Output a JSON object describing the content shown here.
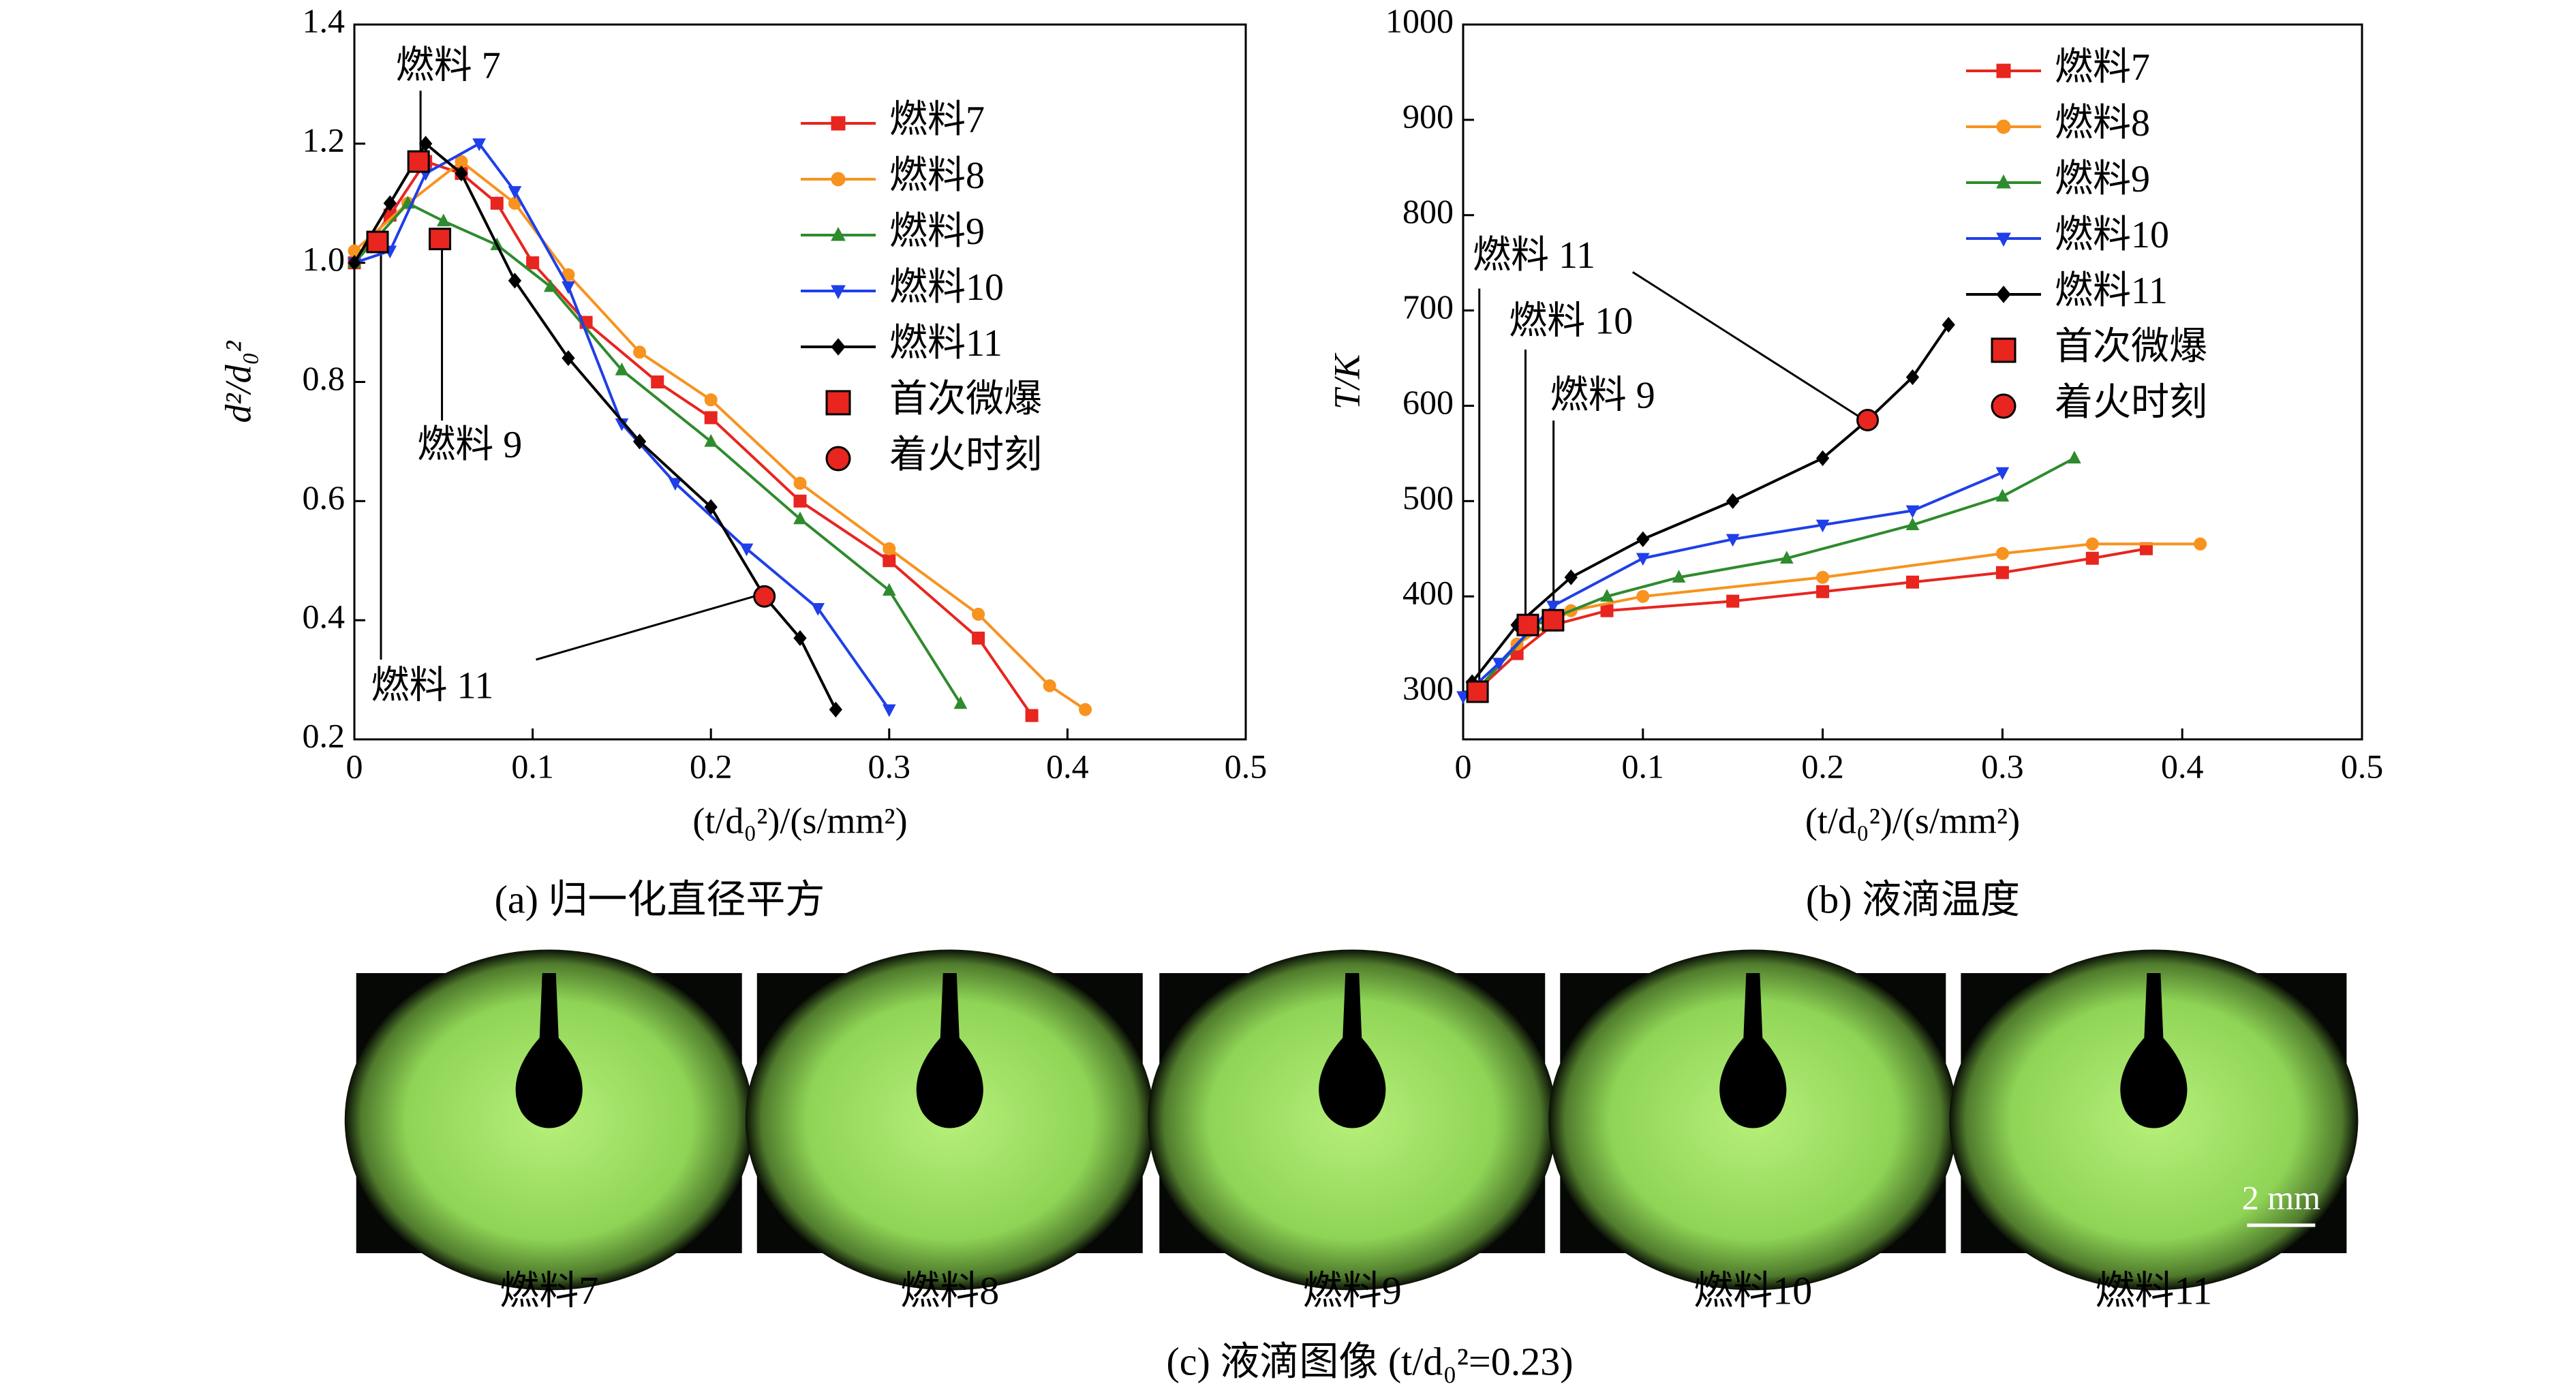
{
  "chart_data": [
    {
      "type": "line",
      "title": "(a) 归一化直径平方",
      "xlabel": "(t/d₀²)/(s/mm²)",
      "ylabel": "d²/d₀²",
      "xlim": [
        0,
        0.5
      ],
      "xticks": [
        0,
        0.1,
        0.2,
        0.3,
        0.4,
        0.5
      ],
      "ylim": [
        0.2,
        1.4
      ],
      "yticks": [
        0.2,
        0.4,
        0.6,
        0.8,
        {
          "value": 1,
          "label": "1.0"
        },
        1.2,
        1.4
      ],
      "grid": false,
      "legend": "upper right",
      "series": [
        {
          "name": "燃料7",
          "color": "#e8251f",
          "marker": "square",
          "x": [
            0,
            0.02,
            0.04,
            0.06,
            0.08,
            0.1,
            0.13,
            0.17,
            0.2,
            0.25,
            0.3,
            0.35,
            0.38
          ],
          "values": [
            1.0,
            1.08,
            1.17,
            1.15,
            1.1,
            1.0,
            0.9,
            0.8,
            0.74,
            0.6,
            0.5,
            0.37,
            0.24
          ]
        },
        {
          "name": "燃料8",
          "color": "#f7931e",
          "marker": "circle",
          "x": [
            0,
            0.03,
            0.06,
            0.09,
            0.12,
            0.16,
            0.2,
            0.25,
            0.3,
            0.35,
            0.39,
            0.41
          ],
          "values": [
            1.02,
            1.1,
            1.17,
            1.1,
            0.98,
            0.85,
            0.77,
            0.63,
            0.52,
            0.41,
            0.29,
            0.25
          ]
        },
        {
          "name": "燃料9",
          "color": "#2e8b2e",
          "marker": "triangle",
          "x": [
            0,
            0.03,
            0.05,
            0.08,
            0.11,
            0.15,
            0.2,
            0.25,
            0.3,
            0.34
          ],
          "values": [
            1.0,
            1.1,
            1.07,
            1.03,
            0.96,
            0.82,
            0.7,
            0.57,
            0.45,
            0.26
          ]
        },
        {
          "name": "燃料10",
          "color": "#1f3fe8",
          "marker": "triangle-down",
          "x": [
            0,
            0.02,
            0.04,
            0.07,
            0.09,
            0.12,
            0.15,
            0.18,
            0.22,
            0.26,
            0.3
          ],
          "values": [
            1.0,
            1.02,
            1.15,
            1.2,
            1.12,
            0.96,
            0.73,
            0.63,
            0.52,
            0.42,
            0.25
          ]
        },
        {
          "name": "燃料11",
          "color": "#000000",
          "marker": "diamond",
          "x": [
            0,
            0.02,
            0.04,
            0.06,
            0.09,
            0.12,
            0.16,
            0.2,
            0.23,
            0.25,
            0.27
          ],
          "values": [
            1.0,
            1.1,
            1.2,
            1.15,
            0.97,
            0.84,
            0.7,
            0.59,
            0.44,
            0.37,
            0.25
          ]
        },
        {
          "name": "首次微爆",
          "color": "#e8251f",
          "marker": "square",
          "line": false,
          "x": [
            0.013,
            0.036,
            0.048
          ],
          "values": [
            1.035,
            1.17,
            1.04
          ]
        },
        {
          "name": "着火时刻",
          "color": "#e8251f",
          "marker": "circle",
          "line": false,
          "x": [
            0.23
          ],
          "values": [
            0.44
          ]
        }
      ],
      "annotations": [
        "燃料 7",
        "燃料 9",
        "燃料 11"
      ]
    },
    {
      "type": "line",
      "title": "(b) 液滴温度",
      "xlabel": "(t/d₀²)/(s/mm²)",
      "ylabel": "T/K",
      "xlim": [
        0,
        0.5
      ],
      "xticks": [
        0,
        0.1,
        0.2,
        0.3,
        0.4,
        0.5
      ],
      "ylim": [
        250,
        1000
      ],
      "yticks": [
        300,
        400,
        500,
        600,
        700,
        800,
        900,
        1000
      ],
      "grid": false,
      "legend": "upper right",
      "series": [
        {
          "name": "燃料7",
          "color": "#e8251f",
          "marker": "square",
          "x": [
            0.007,
            0.03,
            0.05,
            0.08,
            0.15,
            0.2,
            0.25,
            0.3,
            0.35,
            0.38
          ],
          "values": [
            300,
            340,
            370,
            385,
            395,
            405,
            415,
            425,
            440,
            450
          ]
        },
        {
          "name": "燃料8",
          "color": "#f7931e",
          "marker": "circle",
          "x": [
            0.007,
            0.03,
            0.06,
            0.1,
            0.2,
            0.3,
            0.35,
            0.41
          ],
          "values": [
            300,
            350,
            385,
            400,
            420,
            445,
            455,
            455
          ]
        },
        {
          "name": "燃料9",
          "color": "#2e8b2e",
          "marker": "triangle",
          "x": [
            0.007,
            0.04,
            0.08,
            0.12,
            0.18,
            0.25,
            0.3,
            0.34
          ],
          "values": [
            300,
            370,
            400,
            420,
            440,
            475,
            505,
            545
          ]
        },
        {
          "name": "燃料10",
          "color": "#1f3fe8",
          "marker": "triangle-down",
          "x": [
            0,
            0.02,
            0.05,
            0.1,
            0.15,
            0.2,
            0.25,
            0.3
          ],
          "values": [
            295,
            330,
            390,
            440,
            460,
            475,
            490,
            530
          ]
        },
        {
          "name": "燃料11",
          "color": "#000000",
          "marker": "diamond",
          "x": [
            0.005,
            0.03,
            0.06,
            0.1,
            0.15,
            0.2,
            0.225,
            0.25,
            0.27
          ],
          "values": [
            310,
            370,
            420,
            460,
            500,
            545,
            585,
            630,
            685
          ]
        },
        {
          "name": "首次微爆",
          "color": "#e8251f",
          "marker": "square",
          "line": false,
          "x": [
            0.008,
            0.036,
            0.05
          ],
          "values": [
            300,
            370,
            375
          ]
        },
        {
          "name": "着火时刻",
          "color": "#e8251f",
          "marker": "circle",
          "line": false,
          "x": [
            0.225
          ],
          "values": [
            585
          ]
        }
      ],
      "annotations": [
        "燃料 11",
        "燃料 10",
        "燃料 9"
      ]
    }
  ],
  "images": {
    "caption": "(c) 液滴图像 (t/d₀²=0.23)",
    "labels": [
      "燃料7",
      "燃料8",
      "燃料9",
      "燃料10",
      "燃料11"
    ],
    "scale_bar": "2 mm"
  }
}
